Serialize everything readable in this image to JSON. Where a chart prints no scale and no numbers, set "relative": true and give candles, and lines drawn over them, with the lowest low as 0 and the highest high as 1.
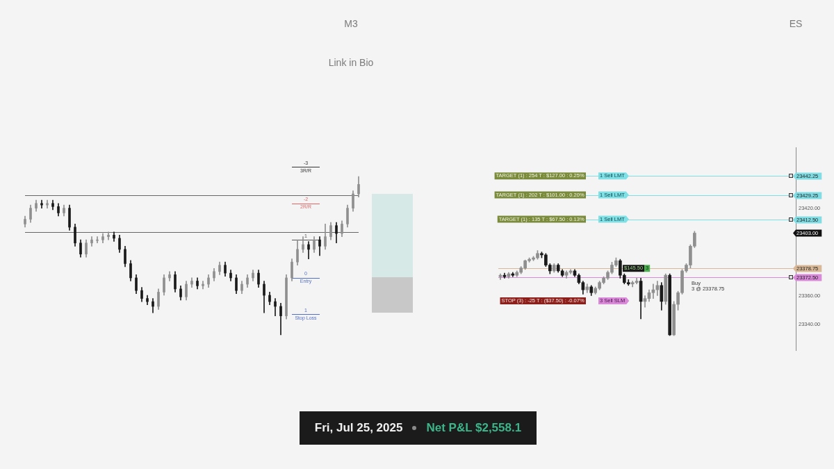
{
  "chart_data": [
    {
      "type": "candlestick",
      "title": "M3",
      "subtitle": "Link in Bio",
      "relative": true,
      "tick_labels": false,
      "categories": [
        null,
        null,
        null,
        null,
        null,
        null,
        null,
        null,
        null,
        null,
        null,
        null,
        null,
        null,
        null,
        null,
        null,
        null,
        null,
        null,
        null,
        null,
        null,
        null,
        null,
        null,
        null,
        null,
        null,
        null,
        null,
        null,
        null,
        null,
        null,
        null,
        null,
        null,
        null,
        null,
        null,
        null,
        null,
        null,
        null,
        null,
        null,
        null,
        null,
        null,
        null,
        null,
        null,
        null,
        null,
        null,
        null,
        null,
        null,
        null,
        null
      ],
      "ohlc": [
        [
          0.7,
          0.75,
          0.68,
          0.73
        ],
        [
          0.73,
          0.82,
          0.71,
          0.8
        ],
        [
          0.8,
          0.85,
          0.78,
          0.83
        ],
        [
          0.83,
          0.85,
          0.8,
          0.82
        ],
        [
          0.82,
          0.85,
          0.8,
          0.83
        ],
        [
          0.83,
          0.85,
          0.79,
          0.81
        ],
        [
          0.81,
          0.83,
          0.75,
          0.77
        ],
        [
          0.77,
          0.82,
          0.75,
          0.8
        ],
        [
          0.8,
          0.82,
          0.66,
          0.68
        ],
        [
          0.68,
          0.7,
          0.56,
          0.58
        ],
        [
          0.58,
          0.6,
          0.49,
          0.51
        ],
        [
          0.51,
          0.6,
          0.49,
          0.58
        ],
        [
          0.58,
          0.62,
          0.56,
          0.6
        ],
        [
          0.6,
          0.62,
          0.58,
          0.6
        ],
        [
          0.6,
          0.64,
          0.58,
          0.62
        ],
        [
          0.62,
          0.65,
          0.6,
          0.63
        ],
        [
          0.63,
          0.65,
          0.59,
          0.61
        ],
        [
          0.61,
          0.63,
          0.52,
          0.54
        ],
        [
          0.54,
          0.56,
          0.43,
          0.45
        ],
        [
          0.45,
          0.47,
          0.34,
          0.36
        ],
        [
          0.36,
          0.38,
          0.26,
          0.28
        ],
        [
          0.28,
          0.3,
          0.21,
          0.23
        ],
        [
          0.23,
          0.25,
          0.19,
          0.21
        ],
        [
          0.21,
          0.23,
          0.14,
          0.18
        ],
        [
          0.18,
          0.29,
          0.16,
          0.27
        ],
        [
          0.27,
          0.38,
          0.25,
          0.36
        ],
        [
          0.36,
          0.4,
          0.34,
          0.38
        ],
        [
          0.38,
          0.4,
          0.27,
          0.29
        ],
        [
          0.29,
          0.31,
          0.22,
          0.24
        ],
        [
          0.24,
          0.34,
          0.22,
          0.32
        ],
        [
          0.32,
          0.36,
          0.3,
          0.34
        ],
        [
          0.34,
          0.36,
          0.29,
          0.31
        ],
        [
          0.31,
          0.34,
          0.29,
          0.32
        ],
        [
          0.32,
          0.38,
          0.3,
          0.36
        ],
        [
          0.36,
          0.42,
          0.34,
          0.4
        ],
        [
          0.4,
          0.46,
          0.38,
          0.44
        ],
        [
          0.44,
          0.46,
          0.37,
          0.39
        ],
        [
          0.39,
          0.41,
          0.34,
          0.36
        ],
        [
          0.36,
          0.38,
          0.26,
          0.28
        ],
        [
          0.28,
          0.34,
          0.26,
          0.32
        ],
        [
          0.32,
          0.38,
          0.3,
          0.36
        ],
        [
          0.36,
          0.41,
          0.34,
          0.39
        ],
        [
          0.39,
          0.41,
          0.3,
          0.32
        ],
        [
          0.32,
          0.34,
          0.14,
          0.25
        ],
        [
          0.25,
          0.27,
          0.19,
          0.21
        ],
        [
          0.21,
          0.23,
          0.12,
          0.18
        ],
        [
          0.18,
          0.2,
          0.0,
          0.12
        ],
        [
          0.12,
          0.38,
          0.1,
          0.36
        ],
        [
          0.36,
          0.48,
          0.34,
          0.46
        ],
        [
          0.46,
          0.6,
          0.44,
          0.54
        ],
        [
          0.54,
          0.62,
          0.52,
          0.57
        ],
        [
          0.57,
          0.59,
          0.48,
          0.54
        ],
        [
          0.54,
          0.62,
          0.52,
          0.6
        ],
        [
          0.6,
          0.62,
          0.5,
          0.56
        ],
        [
          0.56,
          0.7,
          0.54,
          0.62
        ],
        [
          0.62,
          0.71,
          0.6,
          0.69
        ],
        [
          0.69,
          0.71,
          0.58,
          0.64
        ],
        [
          0.64,
          0.72,
          0.62,
          0.7
        ],
        [
          0.7,
          0.82,
          0.68,
          0.8
        ],
        [
          0.8,
          0.91,
          0.78,
          0.89
        ],
        [
          0.89,
          1.0,
          0.87,
          0.95
        ]
      ],
      "ref_lines": [
        {
          "axis": "y",
          "value": 0.88,
          "color": "#666666"
        },
        {
          "axis": "y",
          "value": 0.65,
          "color": "#666666"
        },
        {
          "axis": "y",
          "value": 1.06,
          "color": "#333333"
        },
        {
          "axis": "y",
          "value": 0.83,
          "color": "#e06666"
        },
        {
          "axis": "y",
          "value": 0.6,
          "color": "#555555"
        },
        {
          "axis": "y",
          "value": 0.36,
          "color": "#5470c6"
        },
        {
          "axis": "y",
          "value": 0.13,
          "color": "#5470c6"
        }
      ],
      "annotations": [
        "Fri, Jul 25, 2025",
        "Net P&L $2,558.1",
        {
          "text": "-3",
          "y": 1.06
        },
        {
          "text": "3R/R",
          "y": 1.06
        },
        {
          "text": "-2",
          "y": 0.83
        },
        {
          "text": "2R/R",
          "y": 0.83
        },
        {
          "text": "1",
          "y": 0.6
        },
        {
          "text": "0",
          "y": 0.36
        },
        {
          "text": "Entry",
          "y": 0.36
        },
        {
          "text": "1",
          "y": 0.13
        },
        {
          "text": "Stop Loss",
          "y": 0.13
        }
      ]
    },
    {
      "type": "candlestick",
      "title": "ES",
      "tick_labels": "y",
      "ylim": [
        23322,
        23462
      ],
      "yticks": [
        {
          "value": 23340,
          "label": "23340.00"
        },
        {
          "value": 23360,
          "label": "23360.00"
        },
        {
          "value": 23420,
          "label": "23420.00"
        }
      ],
      "categories": [
        null,
        null,
        null,
        null,
        null,
        null,
        null,
        null,
        null,
        null,
        null,
        null,
        null,
        null,
        null,
        null,
        null,
        null,
        null,
        null,
        null,
        null,
        null,
        null,
        null,
        null,
        null,
        null,
        null,
        null,
        null,
        null,
        null,
        null,
        null,
        null,
        null,
        null,
        null,
        null,
        null,
        null,
        null,
        null,
        null,
        null,
        null,
        null,
        null,
        null,
        null,
        null,
        null,
        null,
        null,
        null,
        null,
        null,
        null,
        null,
        null,
        null,
        null,
        null,
        null,
        null,
        null,
        null,
        null,
        null,
        null,
        null
      ],
      "ohlc": [
        [
          23373,
          23375,
          23371,
          23374
        ],
        [
          23374,
          23375.5,
          23372,
          23373
        ],
        [
          23373,
          23376,
          23372,
          23375
        ],
        [
          23375,
          23376,
          23373,
          23374
        ],
        [
          23374,
          23377,
          23373,
          23376
        ],
        [
          23376,
          23380,
          23375,
          23379
        ],
        [
          23379,
          23384.5,
          23378,
          23384
        ],
        [
          23384,
          23386,
          23383,
          23385
        ],
        [
          23385,
          23387,
          23384,
          23386
        ],
        [
          23386,
          23391,
          23385,
          23389
        ],
        [
          23389,
          23390,
          23386,
          23388
        ],
        [
          23388,
          23389,
          23380,
          23381
        ],
        [
          23381,
          23382,
          23375,
          23377
        ],
        [
          23377,
          23382,
          23376,
          23381
        ],
        [
          23381,
          23382,
          23376,
          23377
        ],
        [
          23377,
          23378,
          23373,
          23374
        ],
        [
          23374,
          23377,
          23372,
          23376
        ],
        [
          23376,
          23378,
          23375,
          23377
        ],
        [
          23377,
          23378,
          23373,
          23374
        ],
        [
          23374,
          23375,
          23368,
          23369
        ],
        [
          23369,
          23370,
          23361,
          23364
        ],
        [
          23364,
          23368,
          23362,
          23366
        ],
        [
          23366,
          23367,
          23360,
          23362
        ],
        [
          23362,
          23366,
          23361,
          23365
        ],
        [
          23365,
          23370,
          23364,
          23369
        ],
        [
          23369,
          23373,
          23368,
          23372
        ],
        [
          23372,
          23377,
          23371,
          23376
        ],
        [
          23376,
          23383,
          23375,
          23381
        ],
        [
          23381,
          23386,
          23380,
          23384
        ],
        [
          23384,
          23385,
          23372,
          23374
        ],
        [
          23374,
          23375,
          23368,
          23369
        ],
        [
          23369,
          23371,
          23367,
          23368
        ],
        [
          23368,
          23370,
          23366,
          23369
        ],
        [
          23369,
          23372,
          23368,
          23370
        ],
        [
          23370,
          23372,
          23344,
          23356
        ],
        [
          23356,
          23360,
          23352,
          23358
        ],
        [
          23358,
          23364,
          23356,
          23362
        ],
        [
          23362,
          23368,
          23358,
          23364
        ],
        [
          23364,
          23370,
          23360,
          23367
        ],
        [
          23367,
          23369,
          23350,
          23356
        ],
        [
          23356,
          23375,
          23354,
          23374
        ],
        [
          23374,
          23375,
          23332.5,
          23333
        ],
        [
          23333,
          23356,
          23332.5,
          23354
        ],
        [
          23354,
          23363,
          23350,
          23362
        ],
        [
          23362,
          23378,
          23361,
          23377
        ],
        [
          23377,
          23382,
          23376,
          23381
        ],
        [
          23381,
          23395,
          23379,
          23394
        ],
        [
          23394,
          23404.25,
          23393,
          23403
        ],
        null,
        null,
        null,
        null,
        null,
        null,
        null,
        null,
        null,
        null,
        null,
        null,
        null,
        null,
        null,
        null,
        null,
        null,
        null,
        null,
        null,
        null,
        null,
        null
      ],
      "ref_lines": [
        {
          "axis": "y",
          "value": 23442.25,
          "label": "23442.25",
          "color": "#7fdde3"
        },
        {
          "axis": "y",
          "value": 23429.25,
          "label": "23429.25",
          "color": "#7fdde3"
        },
        {
          "axis": "y",
          "value": 23412.5,
          "label": "23412.50",
          "color": "#7fdde3"
        },
        {
          "axis": "y",
          "value": 23378.75,
          "label": "23378.75",
          "color": "#d8b896"
        },
        {
          "axis": "y",
          "value": 23372.5,
          "label": "23372.50",
          "color": "#d98ad9"
        }
      ],
      "annotations": [
        {
          "text": "TARGET (1) : 254 T : $127.00 : 0.25%",
          "y": 23442.25
        },
        {
          "text": "1 Sell LMT",
          "y": 23442.25
        },
        {
          "text": "TARGET (1) : 202 T : $101.00 : 0.20%",
          "y": 23429.25
        },
        {
          "text": "1 Sell LMT",
          "y": 23429.25
        },
        {
          "text": "TARGET (1) : 135 T : $67.50 : 0.13%",
          "y": 23412.5
        },
        {
          "text": "1 Sell LMT",
          "y": 23412.5
        },
        "STOP (3) : -25 T : ($37.50) : -0.07%",
        "3 Sell SLM",
        {
          "text": "$145.50",
          "y": 23378.75
        },
        {
          "text": "3",
          "y": 23378.75
        },
        "Buy",
        "3 @ 23378.75",
        "23403.00"
      ]
    }
  ]
}
